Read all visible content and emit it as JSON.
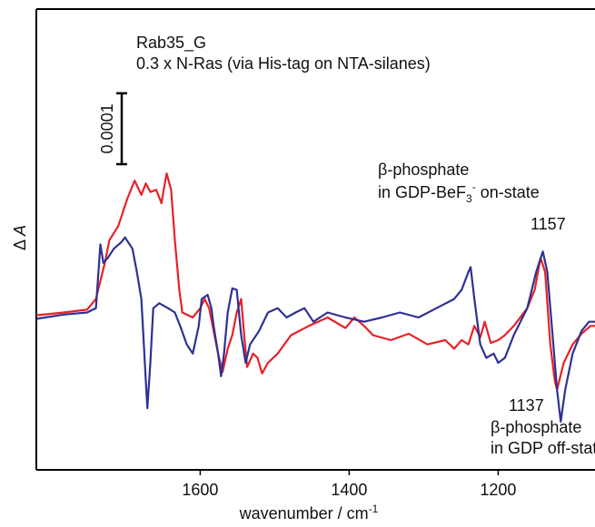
{
  "chart_data": {
    "type": "line",
    "xlabel": {
      "text": "wavenumber / cm",
      "sup": "-1"
    },
    "ylabel": {
      "symbol": "Δ ",
      "var": "A"
    },
    "xlim": [
      1820,
      1070
    ],
    "xticks": [
      1600,
      1400,
      1200
    ],
    "ylim": [
      -0.0002,
      0.00045
    ],
    "scale_bar": 0.0001,
    "annotations": {
      "top": {
        "line1": "β-phosphate",
        "line2": [
          "in GDP-BeF",
          "3",
          "-",
          " on-state"
        ]
      },
      "peak_top": "1157",
      "peak_bottom": "1137",
      "bottom": {
        "line1": "β-phosphate",
        "line2": "in GDP off-state"
      }
    },
    "series": [
      {
        "name": "Rab35_G",
        "color": "#e8212a",
        "x": [
          1820,
          1783,
          1752,
          1740,
          1728,
          1722,
          1710,
          1698,
          1688,
          1679,
          1673,
          1667,
          1659,
          1652,
          1649,
          1645,
          1639,
          1634,
          1628,
          1624,
          1610,
          1600,
          1594,
          1588,
          1576,
          1570,
          1563,
          1557,
          1551,
          1545,
          1541,
          1537,
          1529,
          1523,
          1517,
          1509,
          1496,
          1478,
          1454,
          1429,
          1405,
          1393,
          1380,
          1368,
          1344,
          1320,
          1295,
          1271,
          1259,
          1249,
          1240,
          1232,
          1224,
          1218,
          1210,
          1200,
          1191,
          1179,
          1161,
          1151,
          1143,
          1137,
          1130,
          1124,
          1121,
          1112,
          1100,
          1088,
          1076,
          1070
        ],
        "values": [
          1.8e-05,
          2.2e-05,
          2.6e-05,
          4.1e-05,
          9.2e-05,
          0.000124,
          0.000144,
          0.000182,
          0.000208,
          0.000188,
          0.000204,
          0.000192,
          0.000195,
          0.000176,
          0.000195,
          0.000218,
          0.000195,
          0.000124,
          5.4e-05,
          2.2e-05,
          1.5e-05,
          2.8e-05,
          4.1e-05,
          2.8e-05,
          -3.6e-05,
          -6.2e-05,
          -2.9e-05,
          -1e-05,
          2.2e-05,
          4.1e-05,
          -1e-05,
          -5.5e-05,
          -3.6e-05,
          -4.2e-05,
          -6.4e-05,
          -4.9e-05,
          -3.6e-05,
          -1e-05,
          3e-06,
          1.5e-05,
          0,
          1.5e-05,
          3e-06,
          -1e-05,
          -1.7e-05,
          -8e-06,
          -2.3e-05,
          -1.7e-05,
          -2.9e-05,
          -1.7e-05,
          -2.3e-05,
          3e-06,
          -1.3e-05,
          9e-06,
          -2.1e-05,
          -1.7e-05,
          -1e-05,
          3e-06,
          2.8e-05,
          5.4e-05,
          9.9e-05,
          7.9e-05,
          -2.3e-05,
          -7.4e-05,
          -8.7e-05,
          -4.9e-05,
          -2.3e-05,
          -8e-06,
          3e-06,
          3e-06
        ]
      },
      {
        "name": "0.3 x N-Ras (via His-tag on NTA-silanes)",
        "color": "#2e3192",
        "x": [
          1820,
          1783,
          1752,
          1740,
          1734,
          1730,
          1724,
          1716,
          1706,
          1701,
          1691,
          1685,
          1679,
          1676,
          1673,
          1671,
          1667,
          1663,
          1655,
          1643,
          1634,
          1627,
          1618,
          1610,
          1602,
          1598,
          1590,
          1585,
          1582,
          1576,
          1572,
          1568,
          1563,
          1557,
          1551,
          1545,
          1539,
          1533,
          1521,
          1509,
          1496,
          1484,
          1472,
          1460,
          1448,
          1429,
          1405,
          1380,
          1356,
          1332,
          1307,
          1283,
          1259,
          1249,
          1240,
          1237,
          1232,
          1224,
          1216,
          1206,
          1200,
          1191,
          1179,
          1161,
          1149,
          1140,
          1134,
          1127,
          1121,
          1116,
          1110,
          1100,
          1088,
          1078,
          1070
        ],
        "values": [
          1.3e-05,
          1.9e-05,
          2.2e-05,
          2.8e-05,
          0.000118,
          9.2e-05,
          9.9e-05,
          0.000112,
          0.000121,
          0.000128,
          0.000112,
          7.9e-05,
          4.1e-05,
          -1.7e-05,
          -7.4e-05,
          -0.000113,
          -4.9e-05,
          2.8e-05,
          3.5e-05,
          2.8e-05,
          2.2e-05,
          3e-06,
          -2.3e-05,
          -3.6e-05,
          3e-06,
          4.1e-05,
          4.7e-05,
          2.8e-05,
          3e-06,
          -3.6e-05,
          -6.8e-05,
          -3.6e-05,
          2.2e-05,
          5.6e-05,
          5.4e-05,
          -1e-05,
          -4.9e-05,
          -2.3e-05,
          -4e-06,
          2.2e-05,
          2.8e-05,
          1.5e-05,
          2.2e-05,
          2.8e-05,
          9e-06,
          2.2e-05,
          1.5e-05,
          9e-06,
          1.5e-05,
          2.2e-05,
          1.5e-05,
          2.8e-05,
          4.1e-05,
          5.4e-05,
          7.9e-05,
          8.6e-05,
          4.1e-05,
          -2.3e-05,
          -4.2e-05,
          -3.6e-05,
          -4.9e-05,
          -4.2e-05,
          -1e-05,
          2.8e-05,
          7.9e-05,
          0.000108,
          7.9e-05,
          -1e-05,
          -8.7e-05,
          -0.000132,
          -8.7e-05,
          -3.6e-05,
          -4e-06,
          9e-06,
          9e-06
        ]
      }
    ]
  }
}
